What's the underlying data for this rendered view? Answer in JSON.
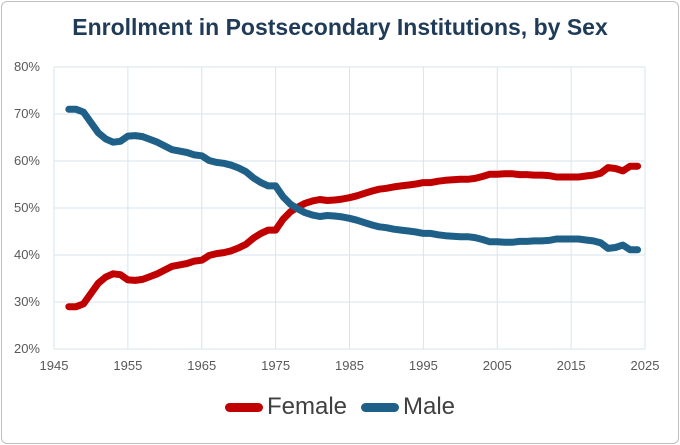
{
  "chart_data": {
    "type": "line",
    "title": "Enrollment in Postsecondary Institutions, by Sex",
    "xlabel": "",
    "ylabel": "",
    "xlim": [
      1945,
      2025
    ],
    "ylim": [
      20,
      80
    ],
    "x_ticks": [
      "1945",
      "1955",
      "1965",
      "1975",
      "1985",
      "1995",
      "2005",
      "2015",
      "2025"
    ],
    "y_ticks": [
      "20%",
      "30%",
      "40%",
      "50%",
      "60%",
      "70%",
      "80%"
    ],
    "grid": true,
    "legend_position": "bottom",
    "series": [
      {
        "name": "Female",
        "color": "#c00000",
        "x": [
          1947,
          1948,
          1949,
          1950,
          1951,
          1952,
          1953,
          1954,
          1955,
          1956,
          1957,
          1958,
          1959,
          1960,
          1961,
          1962,
          1963,
          1964,
          1965,
          1966,
          1967,
          1968,
          1969,
          1970,
          1971,
          1972,
          1973,
          1974,
          1975,
          1976,
          1977,
          1978,
          1979,
          1980,
          1981,
          1982,
          1983,
          1984,
          1985,
          1986,
          1987,
          1988,
          1989,
          1990,
          1991,
          1992,
          1993,
          1994,
          1995,
          1996,
          1997,
          1998,
          1999,
          2000,
          2001,
          2002,
          2003,
          2004,
          2005,
          2006,
          2007,
          2008,
          2009,
          2010,
          2011,
          2012,
          2013,
          2014,
          2015,
          2016,
          2017,
          2018,
          2019,
          2020,
          2021,
          2022,
          2023,
          2024
        ],
        "values": [
          29,
          29,
          29.6,
          31.8,
          34,
          35.3,
          36,
          35.8,
          34.7,
          34.6,
          34.8,
          35.4,
          36,
          36.8,
          37.6,
          37.9,
          38.2,
          38.7,
          38.9,
          39.9,
          40.3,
          40.5,
          40.9,
          41.5,
          42.3,
          43.6,
          44.6,
          45.3,
          45.3,
          47.6,
          49.2,
          50.2,
          51,
          51.5,
          51.8,
          51.6,
          51.7,
          51.9,
          52.2,
          52.6,
          53.1,
          53.6,
          54,
          54.2,
          54.5,
          54.7,
          54.9,
          55.1,
          55.4,
          55.4,
          55.7,
          55.9,
          56,
          56.1,
          56.1,
          56.3,
          56.7,
          57.2,
          57.2,
          57.3,
          57.3,
          57.1,
          57.1,
          57,
          57,
          56.9,
          56.6,
          56.6,
          56.6,
          56.6,
          56.8,
          57,
          57.4,
          58.6,
          58.4,
          57.9,
          58.9,
          58.9
        ]
      },
      {
        "name": "Male",
        "color": "#1f6088",
        "x": [
          1947,
          1948,
          1949,
          1950,
          1951,
          1952,
          1953,
          1954,
          1955,
          1956,
          1957,
          1958,
          1959,
          1960,
          1961,
          1962,
          1963,
          1964,
          1965,
          1966,
          1967,
          1968,
          1969,
          1970,
          1971,
          1972,
          1973,
          1974,
          1975,
          1976,
          1977,
          1978,
          1979,
          1980,
          1981,
          1982,
          1983,
          1984,
          1985,
          1986,
          1987,
          1988,
          1989,
          1990,
          1991,
          1992,
          1993,
          1994,
          1995,
          1996,
          1997,
          1998,
          1999,
          2000,
          2001,
          2002,
          2003,
          2004,
          2005,
          2006,
          2007,
          2008,
          2009,
          2010,
          2011,
          2012,
          2013,
          2014,
          2015,
          2016,
          2017,
          2018,
          2019,
          2020,
          2021,
          2022,
          2023,
          2024
        ],
        "values": [
          71,
          71,
          70.4,
          68.2,
          66,
          64.7,
          64,
          64.2,
          65.3,
          65.4,
          65.2,
          64.6,
          64,
          63.2,
          62.4,
          62.1,
          61.8,
          61.3,
          61.1,
          60.1,
          59.7,
          59.5,
          59.1,
          58.5,
          57.7,
          56.4,
          55.4,
          54.7,
          54.7,
          52.4,
          50.8,
          49.8,
          49,
          48.5,
          48.2,
          48.4,
          48.3,
          48.1,
          47.8,
          47.4,
          46.9,
          46.4,
          46,
          45.8,
          45.5,
          45.3,
          45.1,
          44.9,
          44.6,
          44.6,
          44.3,
          44.1,
          44,
          43.9,
          43.9,
          43.7,
          43.3,
          42.8,
          42.8,
          42.7,
          42.7,
          42.9,
          42.9,
          43,
          43,
          43.1,
          43.4,
          43.4,
          43.4,
          43.4,
          43.2,
          43,
          42.6,
          41.4,
          41.6,
          42.1,
          41.1,
          41.1
        ]
      }
    ]
  }
}
